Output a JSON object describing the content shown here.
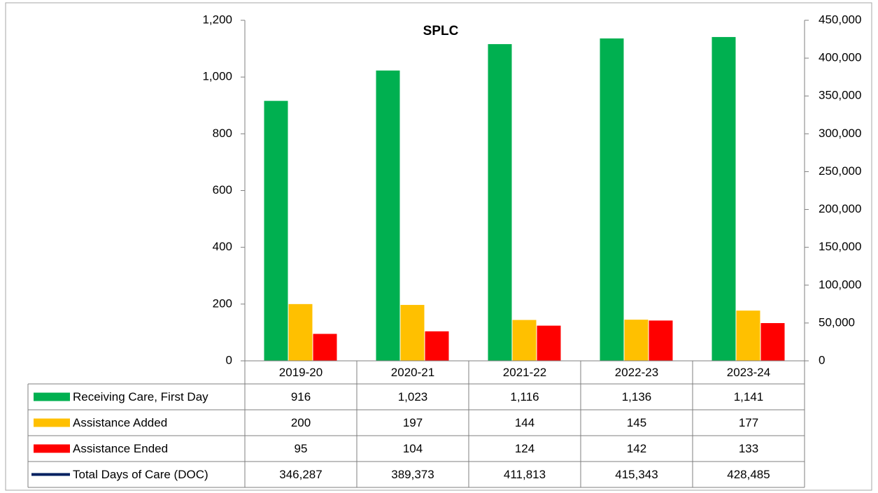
{
  "chart_data": {
    "type": "bar",
    "title": "SPLC",
    "categories": [
      "2019-20",
      "2020-21",
      "2021-22",
      "2022-23",
      "2023-24"
    ],
    "series": [
      {
        "name": "Receiving Care, First Day",
        "color": "#00b050",
        "values": [
          916,
          1023,
          1116,
          1136,
          1141
        ],
        "value_labels": [
          "916",
          "1,023",
          "1,116",
          "1,136",
          "1,141"
        ]
      },
      {
        "name": "Assistance Added",
        "color": "#ffc000",
        "values": [
          200,
          197,
          144,
          145,
          177
        ],
        "value_labels": [
          "200",
          "197",
          "144",
          "145",
          "177"
        ]
      },
      {
        "name": "Assistance Ended",
        "color": "#ff0000",
        "values": [
          95,
          104,
          124,
          142,
          133
        ],
        "value_labels": [
          "95",
          "104",
          "124",
          "142",
          "133"
        ]
      },
      {
        "name": "Total Days of Care (DOC)",
        "type": "line",
        "axis": "y2",
        "color": "#002060",
        "values": [
          346287,
          389373,
          411813,
          415343,
          428485
        ],
        "value_labels": [
          "346,287",
          "389,373",
          "411,813",
          "415,343",
          "428,485"
        ]
      }
    ],
    "ylim": [
      0,
      1200
    ],
    "yticks": [
      0,
      200,
      400,
      600,
      800,
      {
        "value": 1000,
        "label": "1,000"
      },
      {
        "value": 1200,
        "label": "1,200"
      }
    ],
    "y2lim": [
      0,
      450000
    ],
    "y2ticks": [
      0,
      {
        "value": 50000,
        "label": "50,000"
      },
      {
        "value": 100000,
        "label": "100,000"
      },
      {
        "value": 150000,
        "label": "150,000"
      },
      {
        "value": 200000,
        "label": "200,000"
      },
      {
        "value": 250000,
        "label": "250,000"
      },
      {
        "value": 300000,
        "label": "300,000"
      },
      {
        "value": 350000,
        "label": "350,000"
      },
      {
        "value": 400000,
        "label": "400,000"
      },
      {
        "value": 450000,
        "label": "450,000"
      }
    ]
  }
}
